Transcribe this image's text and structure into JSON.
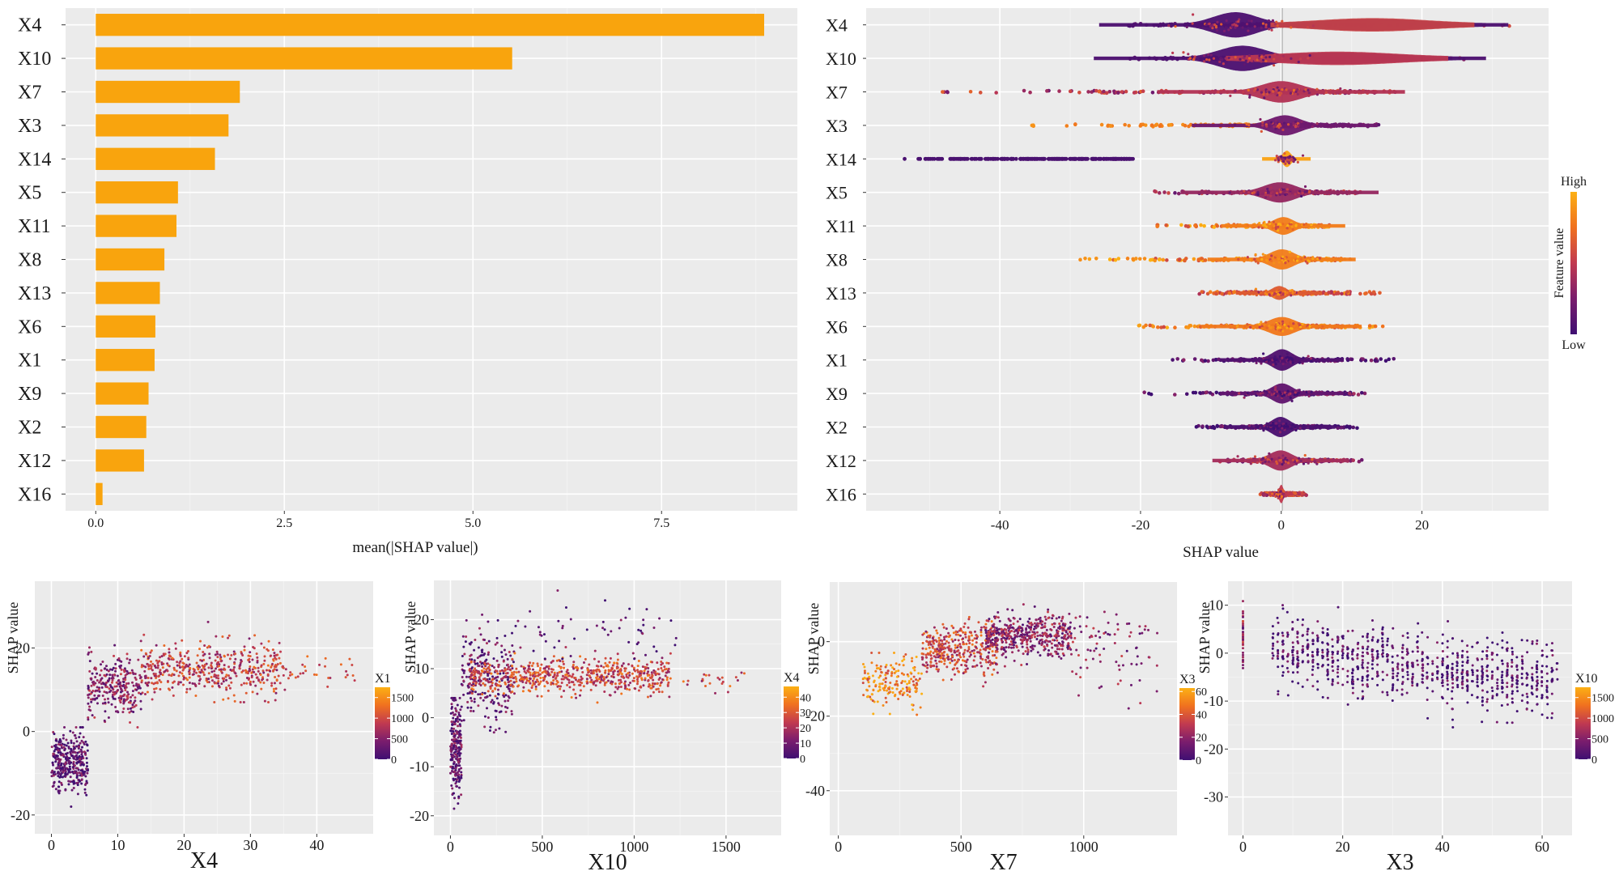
{
  "chart_data": [
    {
      "id": "importance",
      "type": "bar",
      "orientation": "horizontal",
      "title": "",
      "xlabel": "mean(|SHAP value|)",
      "ylabel": "",
      "categories": [
        "X4",
        "X10",
        "X7",
        "X3",
        "X14",
        "X5",
        "X11",
        "X8",
        "X13",
        "X6",
        "X1",
        "X9",
        "X2",
        "X12",
        "X16"
      ],
      "values": [
        8.86,
        5.52,
        1.91,
        1.76,
        1.58,
        1.09,
        1.07,
        0.91,
        0.85,
        0.79,
        0.78,
        0.7,
        0.67,
        0.64,
        0.09
      ],
      "xlim": [
        -0.4,
        9.3
      ],
      "xticks": [
        0,
        2.5,
        5,
        7.5
      ],
      "xtick_labels": [
        "0.0",
        "2.5",
        "5.0",
        "7.5"
      ],
      "bar_color": "#f9a40d",
      "grid": true
    },
    {
      "id": "beeswarm",
      "type": "scatter",
      "subtype": "beeswarm",
      "xlabel": "SHAP value",
      "ylabel": "",
      "categories": [
        "X4",
        "X10",
        "X7",
        "X3",
        "X14",
        "X5",
        "X11",
        "X8",
        "X13",
        "X6",
        "X1",
        "X9",
        "X2",
        "X12",
        "X16"
      ],
      "xlim": [
        -59,
        38
      ],
      "xticks": [
        -40,
        -20,
        0,
        20
      ],
      "xtick_labels": [
        "-40",
        "-20",
        "0",
        "20"
      ],
      "grid": true,
      "legend": {
        "title": "Feature value",
        "high": "High",
        "low": "Low",
        "position": "right"
      },
      "series": [
        {
          "name": "X4",
          "range": [
            -22,
            33
          ],
          "mode": -6.5,
          "spread": 2.2,
          "width": 1.0,
          "lowColorSide": "left",
          "secondMode": 13,
          "colorHigh": 0.55
        },
        {
          "name": "X10",
          "range": [
            -22,
            26
          ],
          "mode": -5.5,
          "spread": 2.4,
          "width": 1.0,
          "lowColorSide": "left",
          "secondMode": 8,
          "colorHigh": 0.5
        },
        {
          "name": "X7",
          "range": [
            -49,
            17
          ],
          "mode": 0,
          "spread": 2.0,
          "width": 0.85,
          "colorMean": 0.45
        },
        {
          "name": "X3",
          "range": [
            -36,
            14
          ],
          "mode": 0.5,
          "spread": 1.5,
          "width": 0.8,
          "leftColor": 0.9,
          "rightColor": 0.1
        },
        {
          "name": "X14",
          "range": [
            -54,
            -21
          ],
          "mode": 0.8,
          "spread": 0.4,
          "width": 0.65,
          "leftColor": 0.05,
          "centerColor": 0.95
        },
        {
          "name": "X5",
          "range": [
            -18,
            12
          ],
          "mode": -0.2,
          "spread": 1.6,
          "width": 0.8,
          "colorMean": 0.35
        },
        {
          "name": "X11",
          "range": [
            -18,
            7.5
          ],
          "mode": 0.3,
          "spread": 1.0,
          "width": 0.7,
          "colorMean": 0.8
        },
        {
          "name": "X8",
          "range": [
            -29,
            10
          ],
          "mode": 0.1,
          "spread": 1.2,
          "width": 0.8,
          "colorMean": 0.8
        },
        {
          "name": "X13",
          "range": [
            -12,
            14.5
          ],
          "mode": -0.3,
          "spread": 0.7,
          "width": 0.55,
          "colorMean": 0.65
        },
        {
          "name": "X6",
          "range": [
            -21.5,
            14.5
          ],
          "mode": 0.1,
          "spread": 1.3,
          "width": 0.75,
          "colorMean": 0.78
        },
        {
          "name": "X1",
          "range": [
            -15.5,
            16
          ],
          "mode": 0.1,
          "spread": 1.0,
          "width": 0.85,
          "colorMean": 0.08
        },
        {
          "name": "X9",
          "range": [
            -19.5,
            12
          ],
          "mode": 0.1,
          "spread": 1.0,
          "width": 0.8,
          "colorMean": 0.15
        },
        {
          "name": "X2",
          "range": [
            -12.5,
            11.5
          ],
          "mode": -0.1,
          "spread": 0.9,
          "width": 0.8,
          "colorMean": 0.05
        },
        {
          "name": "X12",
          "range": [
            -9,
            11.5
          ],
          "mode": -0.1,
          "spread": 1.1,
          "width": 0.8,
          "colorMean": 0.4
        },
        {
          "name": "X16",
          "range": [
            -3,
            3.8
          ],
          "mode": 0,
          "spread": 0.2,
          "width": 0.75,
          "colorMean": 0.5
        }
      ]
    },
    {
      "id": "dependence-x4",
      "type": "scatter",
      "xlabel": "X4",
      "ylabel": "SHAP value",
      "xlim": [
        -2.5,
        48.5
      ],
      "ylim": [
        -24.5,
        36
      ],
      "xticks": [
        0,
        10,
        20,
        30,
        40
      ],
      "yticks": [
        -20,
        0,
        20
      ],
      "color_by": "X1",
      "colorbar_ticks": [
        0,
        500,
        1000,
        1500
      ],
      "colorbar_max": 1750,
      "clusters": [
        {
          "x": [
            0,
            5.5
          ],
          "y": [
            -18,
            1
          ],
          "n": 1400,
          "yMean": -7,
          "ySd": 3.5,
          "c": 0.12
        },
        {
          "x": [
            5.5,
            13.5
          ],
          "y": [
            1,
            22
          ],
          "n": 1100,
          "yMean": 11,
          "ySd": 3.5,
          "c": 0.3
        },
        {
          "x": [
            13.5,
            35
          ],
          "y": [
            7,
            30
          ],
          "n": 1900,
          "yMean": 15,
          "ySd": 3.2,
          "c": 0.5
        },
        {
          "x": [
            35,
            46
          ],
          "y": [
            10,
            20
          ],
          "n": 120,
          "yMean": 14,
          "ySd": 1.6,
          "c": 0.55
        }
      ]
    },
    {
      "id": "dependence-x10",
      "type": "scatter",
      "xlabel": "X10",
      "ylabel": "SHAP value",
      "xlim": [
        -90,
        1800
      ],
      "ylim": [
        -24,
        28
      ],
      "xticks": [
        0,
        500,
        1000,
        1500
      ],
      "yticks": [
        -20,
        -10,
        0,
        10,
        20
      ],
      "color_by": "X4",
      "colorbar_ticks": [
        0,
        10,
        20,
        30,
        40
      ],
      "colorbar_max": 47,
      "clusters": [
        {
          "x": [
            0,
            60
          ],
          "y": [
            -21,
            4
          ],
          "n": 900,
          "yMean": -6,
          "ySd": 5,
          "c": 0.15
        },
        {
          "x": [
            60,
            350
          ],
          "y": [
            -3,
            21
          ],
          "n": 900,
          "yMean": 8,
          "ySd": 5,
          "c": 0.15
        },
        {
          "x": [
            100,
            1200
          ],
          "y": [
            3,
            15
          ],
          "n": 2600,
          "yMean": 8.5,
          "ySd": 1.8,
          "c": 0.55
        },
        {
          "x": [
            350,
            1250
          ],
          "y": [
            12,
            26
          ],
          "n": 220,
          "yMean": 17,
          "ySd": 3.5,
          "c": 0.1
        },
        {
          "x": [
            1200,
            1600
          ],
          "y": [
            5,
            12
          ],
          "n": 90,
          "yMean": 8,
          "ySd": 1.4,
          "c": 0.55
        }
      ]
    },
    {
      "id": "dependence-x7",
      "type": "scatter",
      "xlabel": "X7",
      "ylabel": "SHAP value",
      "xlim": [
        -35,
        1380
      ],
      "ylim": [
        -52,
        16
      ],
      "xticks": [
        0,
        500,
        1000
      ],
      "yticks": [
        -40,
        -20,
        0
      ],
      "color_by": "X3",
      "colorbar_ticks": [
        0,
        20,
        40,
        60
      ],
      "colorbar_max": 63,
      "clusters": [
        {
          "x": [
            100,
            340
          ],
          "y": [
            -21,
            -3
          ],
          "n": 700,
          "yMean": -11,
          "ySd": 3.5,
          "c": 0.8
        },
        {
          "x": [
            340,
            650
          ],
          "y": [
            -12,
            8
          ],
          "n": 1500,
          "yMean": -2,
          "ySd": 3.5,
          "c": 0.55
        },
        {
          "x": [
            600,
            950
          ],
          "y": [
            -8,
            10
          ],
          "n": 1800,
          "yMean": 1.5,
          "ySd": 2.8,
          "c": 0.3
        },
        {
          "x": [
            950,
            1300
          ],
          "y": [
            -28,
            8
          ],
          "n": 320,
          "yMean": -3,
          "ySd": 6,
          "c": 0.3
        }
      ]
    },
    {
      "id": "dependence-x3",
      "type": "scatter",
      "xlabel": "X3",
      "ylabel": "SHAP value",
      "xlim": [
        -3,
        66
      ],
      "ylim": [
        -38,
        15
      ],
      "xticks": [
        0,
        20,
        40,
        60
      ],
      "yticks": [
        -30,
        -20,
        -10,
        0,
        10
      ],
      "color_by": "X10",
      "colorbar_ticks": [
        0,
        500,
        1000,
        1500
      ],
      "colorbar_max": 1750,
      "clusters": [
        {
          "x": [
            0,
            0
          ],
          "y": [
            -4,
            13
          ],
          "n": 160,
          "yMean": 3,
          "ySd": 3.5,
          "c": 0.35
        },
        {
          "x": [
            6,
            63
          ],
          "y": [
            -22,
            10
          ],
          "n": 3600,
          "yMean": -2,
          "ySd": 3.5,
          "c": 0.07,
          "discrete": true,
          "slope": -0.12
        }
      ]
    }
  ]
}
